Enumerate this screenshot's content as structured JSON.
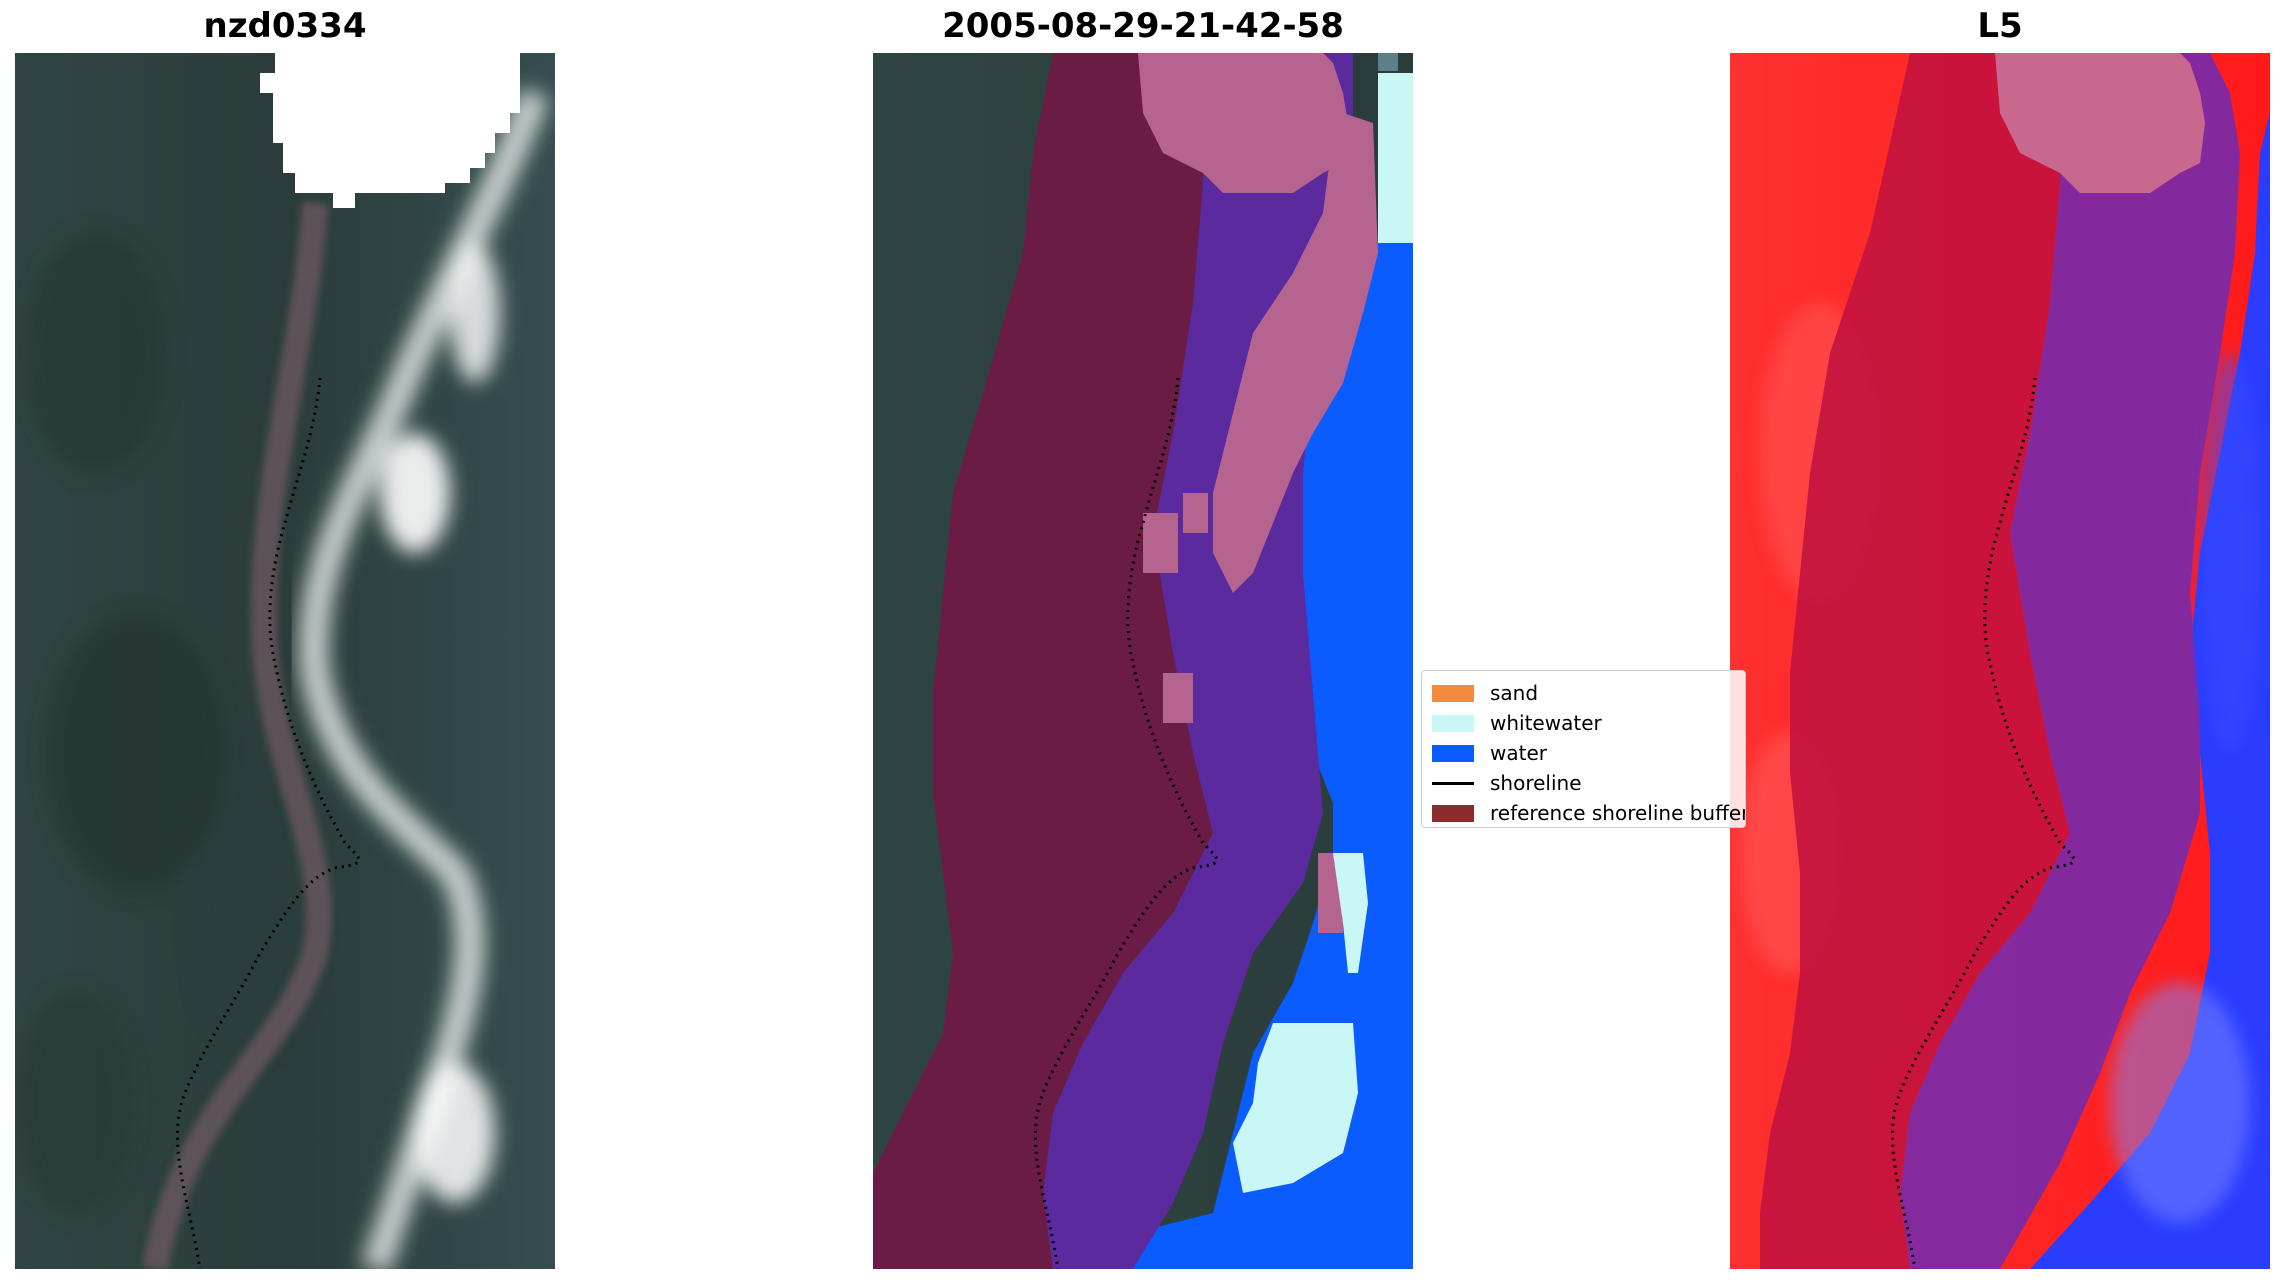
{
  "panels": [
    {
      "title": "nzd0334",
      "kind": "rgb-satellite-image"
    },
    {
      "title": "2005-08-29-21-42-58",
      "kind": "classification-overlay"
    },
    {
      "title": "L5",
      "kind": "index-colormap"
    }
  ],
  "legend": {
    "items": [
      {
        "label": "sand",
        "type": "patch",
        "color": "#f58b3d"
      },
      {
        "label": "whitewater",
        "type": "patch",
        "color": "#c8f7f5"
      },
      {
        "label": "water",
        "type": "patch",
        "color": "#0a5cff"
      },
      {
        "label": "shoreline",
        "type": "line",
        "color": "#000000"
      },
      {
        "label": "reference shoreline buffer",
        "type": "patch",
        "color": "#8b2b2b"
      }
    ]
  },
  "colors": {
    "rgb_land": "#2a3d3c",
    "buffer_overlay": "#6e1a46",
    "sand_overlay": "#5a2a9e",
    "cloud_overlay": "#b56490",
    "water_class": "#0a5cff",
    "whitewater_class": "#c8f7f5",
    "index_red": "#ff2a2a",
    "index_blue": "#2a3dff",
    "index_purple": "#7a2aa8"
  }
}
